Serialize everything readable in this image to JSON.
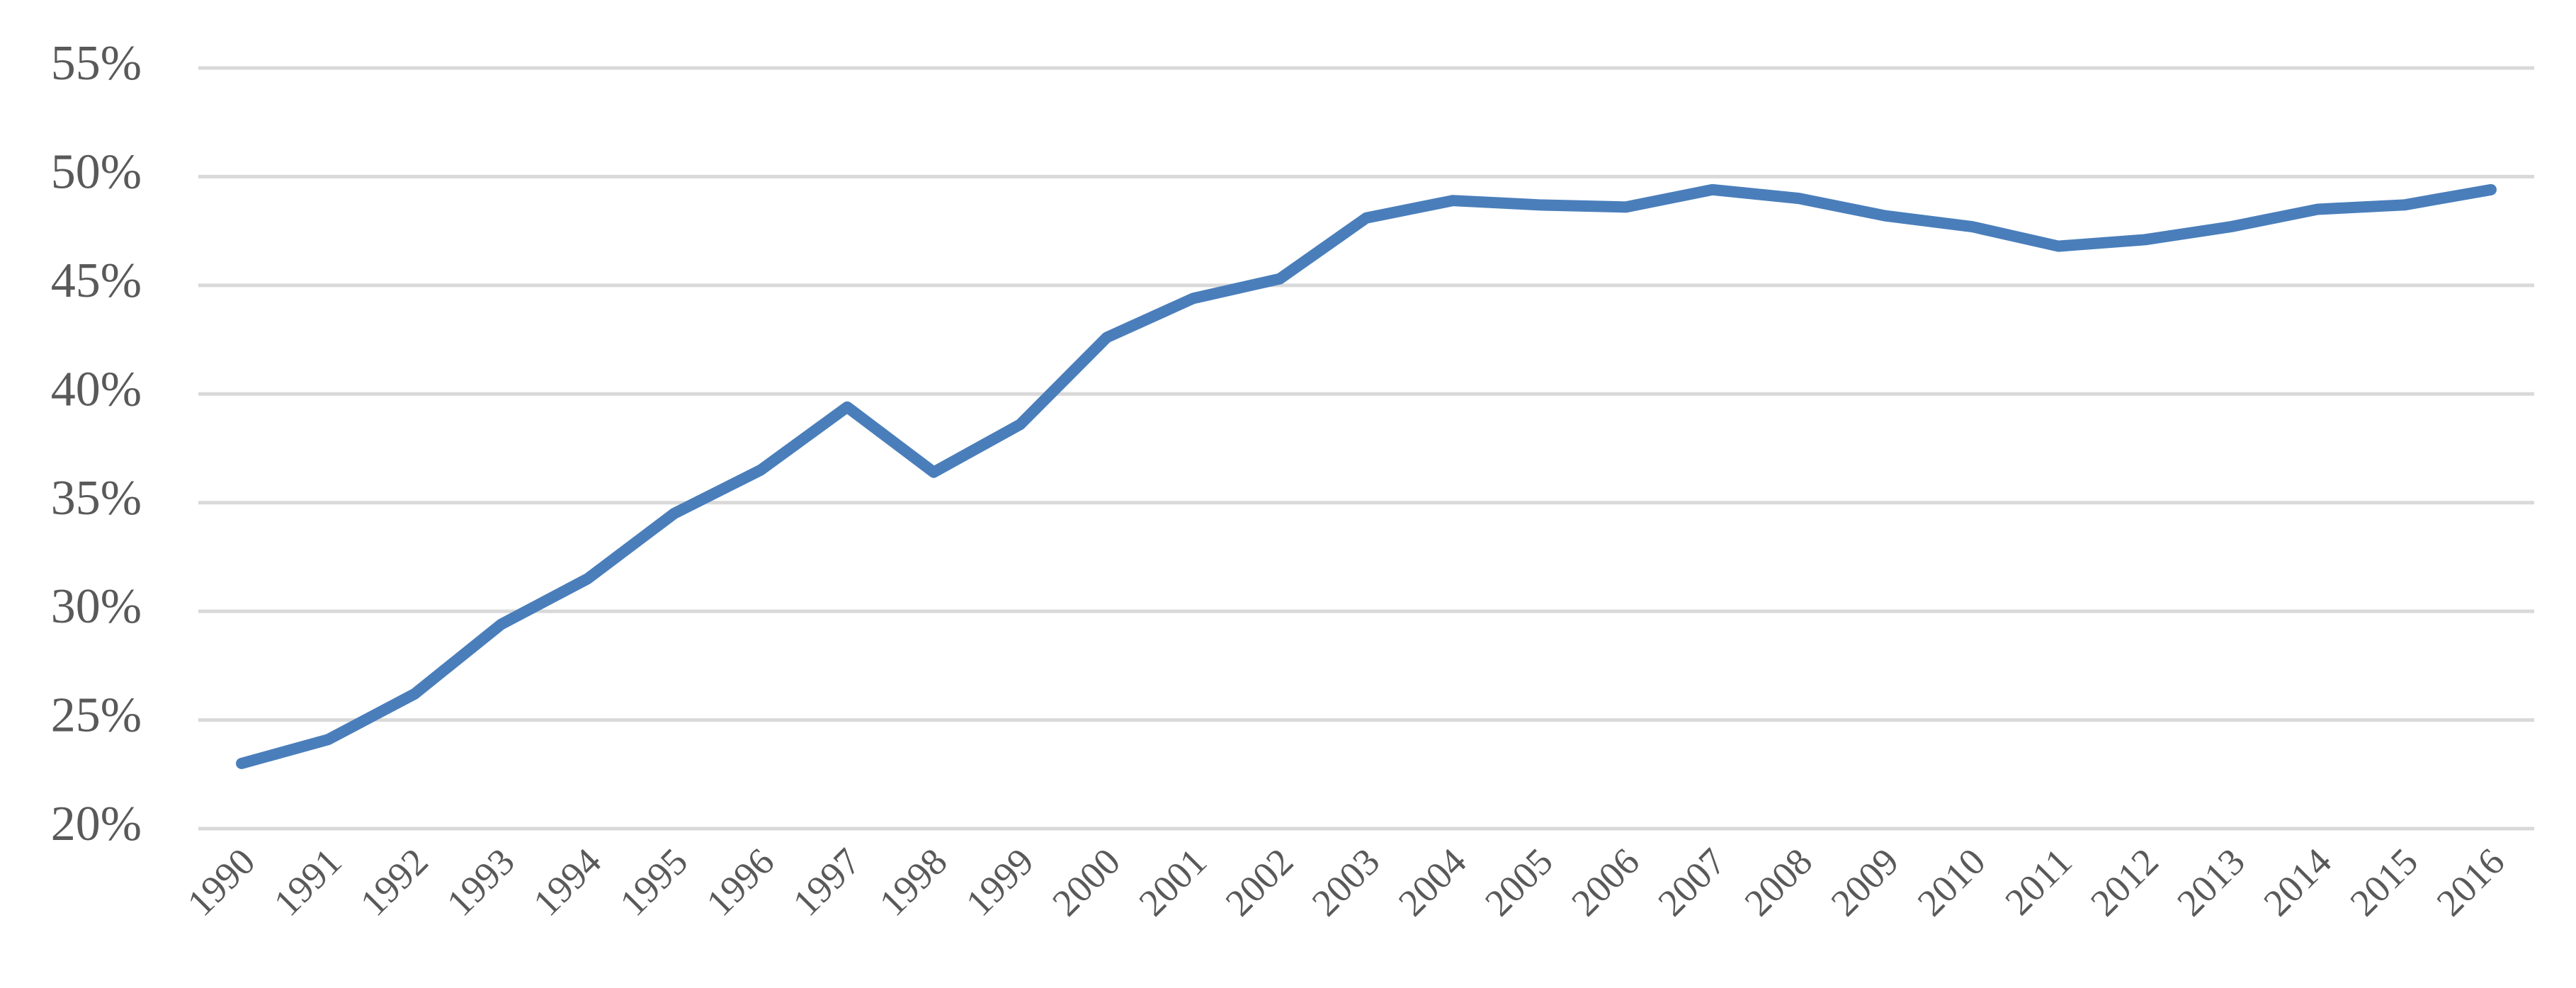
{
  "chart_data": {
    "type": "line",
    "categories": [
      "1990",
      "1991",
      "1992",
      "1993",
      "1994",
      "1995",
      "1996",
      "1997",
      "1998",
      "1999",
      "2000",
      "2001",
      "2002",
      "2003",
      "2004",
      "2005",
      "2006",
      "2007",
      "2008",
      "2009",
      "2010",
      "2011",
      "2012",
      "2013",
      "2014",
      "2015",
      "2016"
    ],
    "values": [
      23.0,
      24.1,
      26.2,
      29.4,
      31.5,
      34.5,
      36.5,
      39.4,
      36.4,
      38.6,
      42.6,
      44.4,
      45.3,
      48.1,
      48.9,
      48.7,
      48.6,
      49.4,
      49.0,
      48.2,
      47.7,
      46.8,
      47.1,
      47.7,
      48.5,
      48.7,
      49.4
    ],
    "color": "#4a7ebb",
    "ylim": [
      20,
      55
    ],
    "yticks": [
      {
        "value": 20,
        "label": "20%"
      },
      {
        "value": 25,
        "label": "25%"
      },
      {
        "value": 30,
        "label": "30%"
      },
      {
        "value": 35,
        "label": "35%"
      },
      {
        "value": 40,
        "label": "40%"
      },
      {
        "value": 45,
        "label": "45%"
      },
      {
        "value": 50,
        "label": "50%"
      },
      {
        "value": 55,
        "label": "55%"
      }
    ],
    "grid": true
  }
}
